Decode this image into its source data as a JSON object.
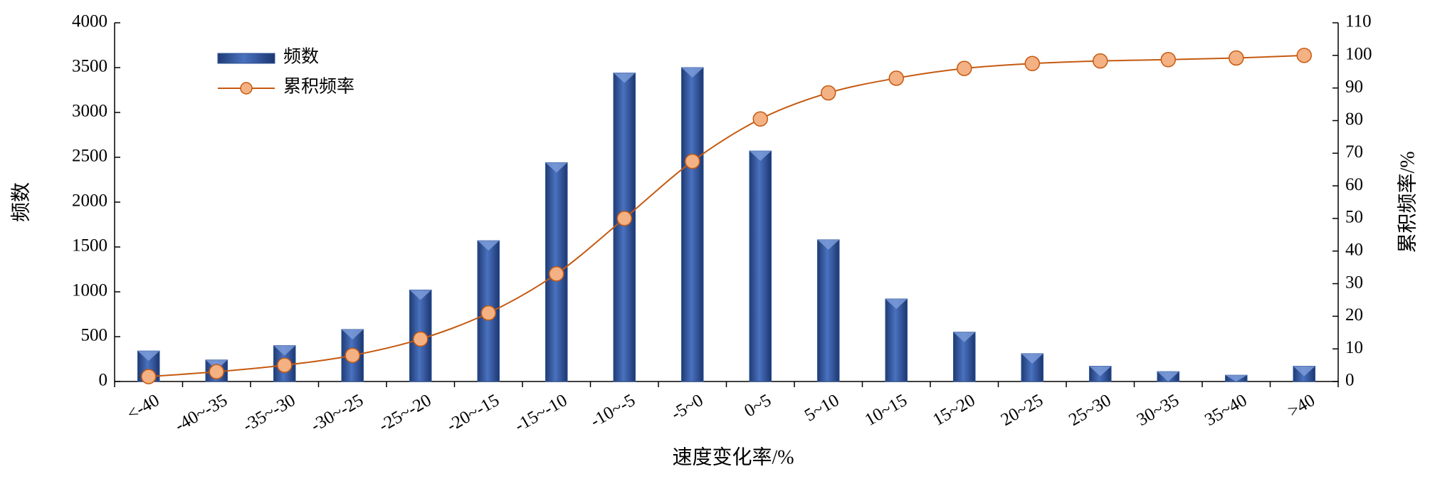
{
  "chart_data": {
    "type": "bar_line",
    "x_label": "速度变化率/%",
    "y_label": "频数",
    "y2_label": "累积频率/%",
    "categories": [
      "<-40",
      "-40~-35",
      "-35~-30",
      "-30~-25",
      "-25~-20",
      "-20~-15",
      "-15~-10",
      "-10~-5",
      "-5~0",
      "0~5",
      "5~10",
      "10~15",
      "15~20",
      "20~25",
      "25~30",
      "30~35",
      "35~40",
      ">40"
    ],
    "series": [
      {
        "name": "频数",
        "type": "bar",
        "color": "#2f5597",
        "values": [
          340,
          240,
          400,
          580,
          1020,
          1570,
          2440,
          3440,
          3500,
          2570,
          1580,
          920,
          550,
          310,
          170,
          110,
          70,
          170
        ]
      },
      {
        "name": "累积频率",
        "type": "line",
        "axis": "y2",
        "color": "#c55a11",
        "marker_color": "#f4b183",
        "values": [
          1.5,
          3,
          5,
          8,
          13,
          21,
          33,
          50,
          67.5,
          80.5,
          88.5,
          93,
          96,
          97.5,
          98.3,
          98.7,
          99.2,
          100
        ]
      }
    ],
    "ylim": [
      0,
      4000
    ],
    "yticks": [
      0,
      500,
      1000,
      1500,
      2000,
      2500,
      3000,
      3500,
      4000
    ],
    "y2lim": [
      0,
      110
    ],
    "y2ticks": [
      0,
      10,
      20,
      30,
      40,
      50,
      60,
      70,
      80,
      90,
      100,
      110
    ],
    "grid": false,
    "legend": "upper left"
  }
}
